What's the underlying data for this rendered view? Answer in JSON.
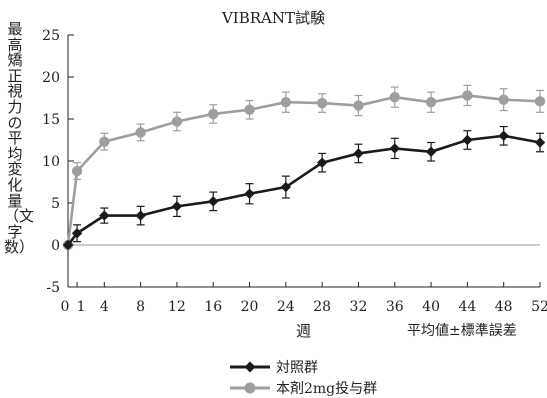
{
  "chart_data": {
    "type": "line",
    "title": "VIBRANT試験",
    "ylabel": "最高矯正視力の平均変化量（文字数）",
    "xlabel": "週",
    "note": "平均値±標準誤差",
    "ylim": [
      -5,
      25
    ],
    "yticks": [
      -5,
      0,
      5,
      10,
      15,
      20,
      25
    ],
    "xticks": [
      0,
      1,
      4,
      8,
      12,
      16,
      20,
      24,
      28,
      32,
      36,
      40,
      44,
      48,
      52
    ],
    "xtick_labels": [
      "0",
      "1",
      "4",
      "8",
      "12",
      "16",
      "20",
      "24",
      "28",
      "32",
      "36",
      "40",
      "44",
      "48",
      "52"
    ],
    "x": [
      0,
      1,
      4,
      8,
      12,
      16,
      20,
      24,
      28,
      32,
      36,
      40,
      44,
      48,
      52
    ],
    "series": [
      {
        "name": "本剤2mg投与群",
        "color": "#9e9e9e",
        "marker": "circle",
        "values": [
          0,
          8.8,
          12.3,
          13.4,
          14.7,
          15.6,
          16.1,
          17.0,
          16.9,
          16.6,
          17.6,
          17.0,
          17.8,
          17.3,
          17.1
        ],
        "errors": [
          0,
          1.0,
          1.0,
          1.0,
          1.1,
          1.1,
          1.1,
          1.2,
          1.1,
          1.2,
          1.2,
          1.2,
          1.2,
          1.3,
          1.3
        ]
      },
      {
        "name": "対照群",
        "color": "#1a1a1a",
        "marker": "diamond",
        "values": [
          0,
          1.4,
          3.5,
          3.5,
          4.6,
          5.2,
          6.1,
          6.9,
          9.8,
          10.9,
          11.5,
          11.1,
          12.5,
          13.0,
          12.2
        ],
        "errors": [
          0,
          1.0,
          0.9,
          1.1,
          1.2,
          1.1,
          1.2,
          1.3,
          1.1,
          1.1,
          1.2,
          1.1,
          1.1,
          1.1,
          1.1
        ]
      }
    ],
    "legend": [
      "対照群",
      "本剤2mg投与群"
    ],
    "legend_position": "bottom",
    "grid": false
  }
}
